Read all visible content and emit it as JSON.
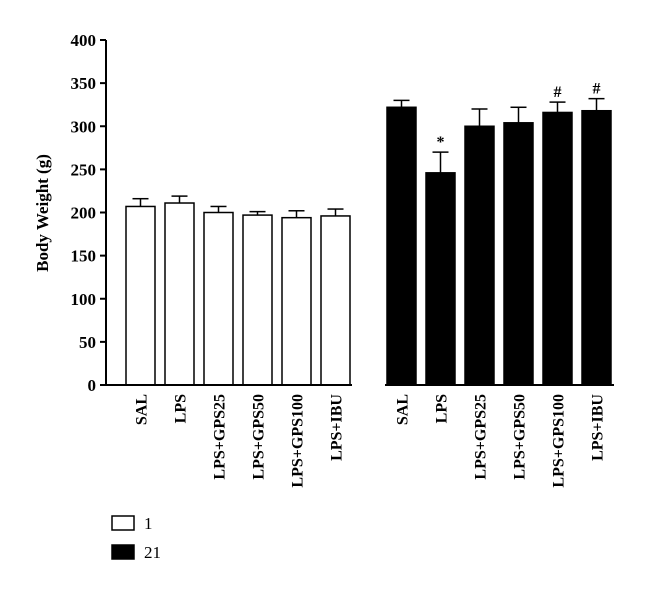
{
  "chart_data": {
    "type": "bar",
    "title": "",
    "xlabel": "",
    "ylabel": "Body Weight (g)",
    "ylim": [
      0,
      400
    ],
    "yticks": [
      0,
      50,
      100,
      150,
      200,
      250,
      300,
      350,
      400
    ],
    "grid": false,
    "legend_position": "bottom-left",
    "series": [
      {
        "name": "1",
        "color": "#ffffff",
        "categories": [
          "SAL",
          "LPS",
          "LPS+GPS25",
          "LPS+GPS50",
          "LPS+GPS100",
          "LPS+IBU"
        ],
        "values": [
          207,
          211,
          200,
          197,
          194,
          196
        ],
        "errors": [
          9,
          8,
          7,
          4,
          8,
          8
        ],
        "annotations": [
          "",
          "",
          "",
          "",
          "",
          ""
        ]
      },
      {
        "name": "21",
        "color": "#000000",
        "categories": [
          "SAL",
          "LPS",
          "LPS+GPS25",
          "LPS+GPS50",
          "LPS+GPS100",
          "LPS+IBU"
        ],
        "values": [
          322,
          246,
          300,
          304,
          316,
          318
        ],
        "errors": [
          8,
          24,
          20,
          18,
          12,
          14
        ],
        "annotations": [
          "",
          "*",
          "",
          "",
          "#",
          "#"
        ]
      }
    ]
  }
}
